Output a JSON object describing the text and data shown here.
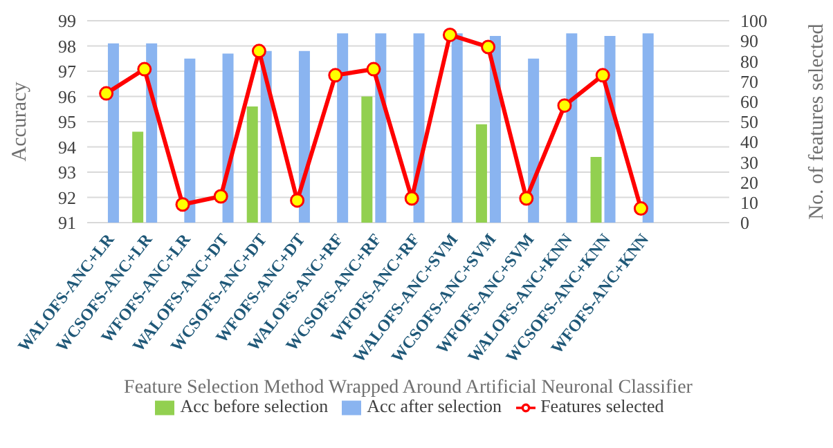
{
  "chart_data": {
    "type": "bar",
    "xlabel": "Feature Selection Method Wrapped Around Artificial Neuronal Classifier",
    "ylabel": "Accuracy",
    "y2label": "No.  of  features selected",
    "categories": [
      "WALOFS-ANC+LR",
      "WCSOFS-ANC+LR",
      "WFOFS-ANC+LR",
      "WALOFS-ANC+DT",
      "WCSOFS-ANC+DT",
      "WFOFS-ANC+DT",
      "WALOFS-ANC+RF",
      "WCSOFS-ANC+RF",
      "WFOFS-ANC+RF",
      "WALOFS-ANC+SVM",
      "WCSOFS-ANC+SVM",
      "WFOFS-ANC+SVM",
      "WALOFS-ANC+KNN",
      "WCSOFS-ANC+KNN",
      "WFOFS-ANC+KNN"
    ],
    "series": [
      {
        "name": "Acc before selection",
        "color": "#92d050",
        "values": [
          null,
          94.6,
          null,
          null,
          95.6,
          null,
          null,
          96.0,
          null,
          null,
          94.9,
          null,
          null,
          93.6,
          null
        ]
      },
      {
        "name": "Acc after selection",
        "color": "#8ab4f0",
        "values": [
          98.1,
          98.1,
          97.5,
          97.7,
          97.8,
          97.8,
          98.5,
          98.5,
          98.5,
          98.5,
          98.4,
          97.5,
          98.5,
          98.4,
          98.5
        ]
      },
      {
        "name": "Features selected",
        "type": "line",
        "axis": "y2",
        "color": "#ff0000",
        "values": [
          64,
          76,
          9,
          13,
          85,
          11,
          73,
          76,
          12,
          93,
          87,
          12,
          58,
          73,
          7
        ]
      }
    ],
    "ylim": [
      91,
      99
    ],
    "yticks": [
      91,
      92,
      93,
      94,
      95,
      96,
      97,
      98,
      99
    ],
    "y2lim": [
      0,
      100
    ],
    "y2ticks": [
      0,
      10,
      20,
      30,
      40,
      50,
      60,
      70,
      80,
      90,
      100
    ],
    "grid": "y",
    "legend": "bottom",
    "marker": "circle"
  }
}
